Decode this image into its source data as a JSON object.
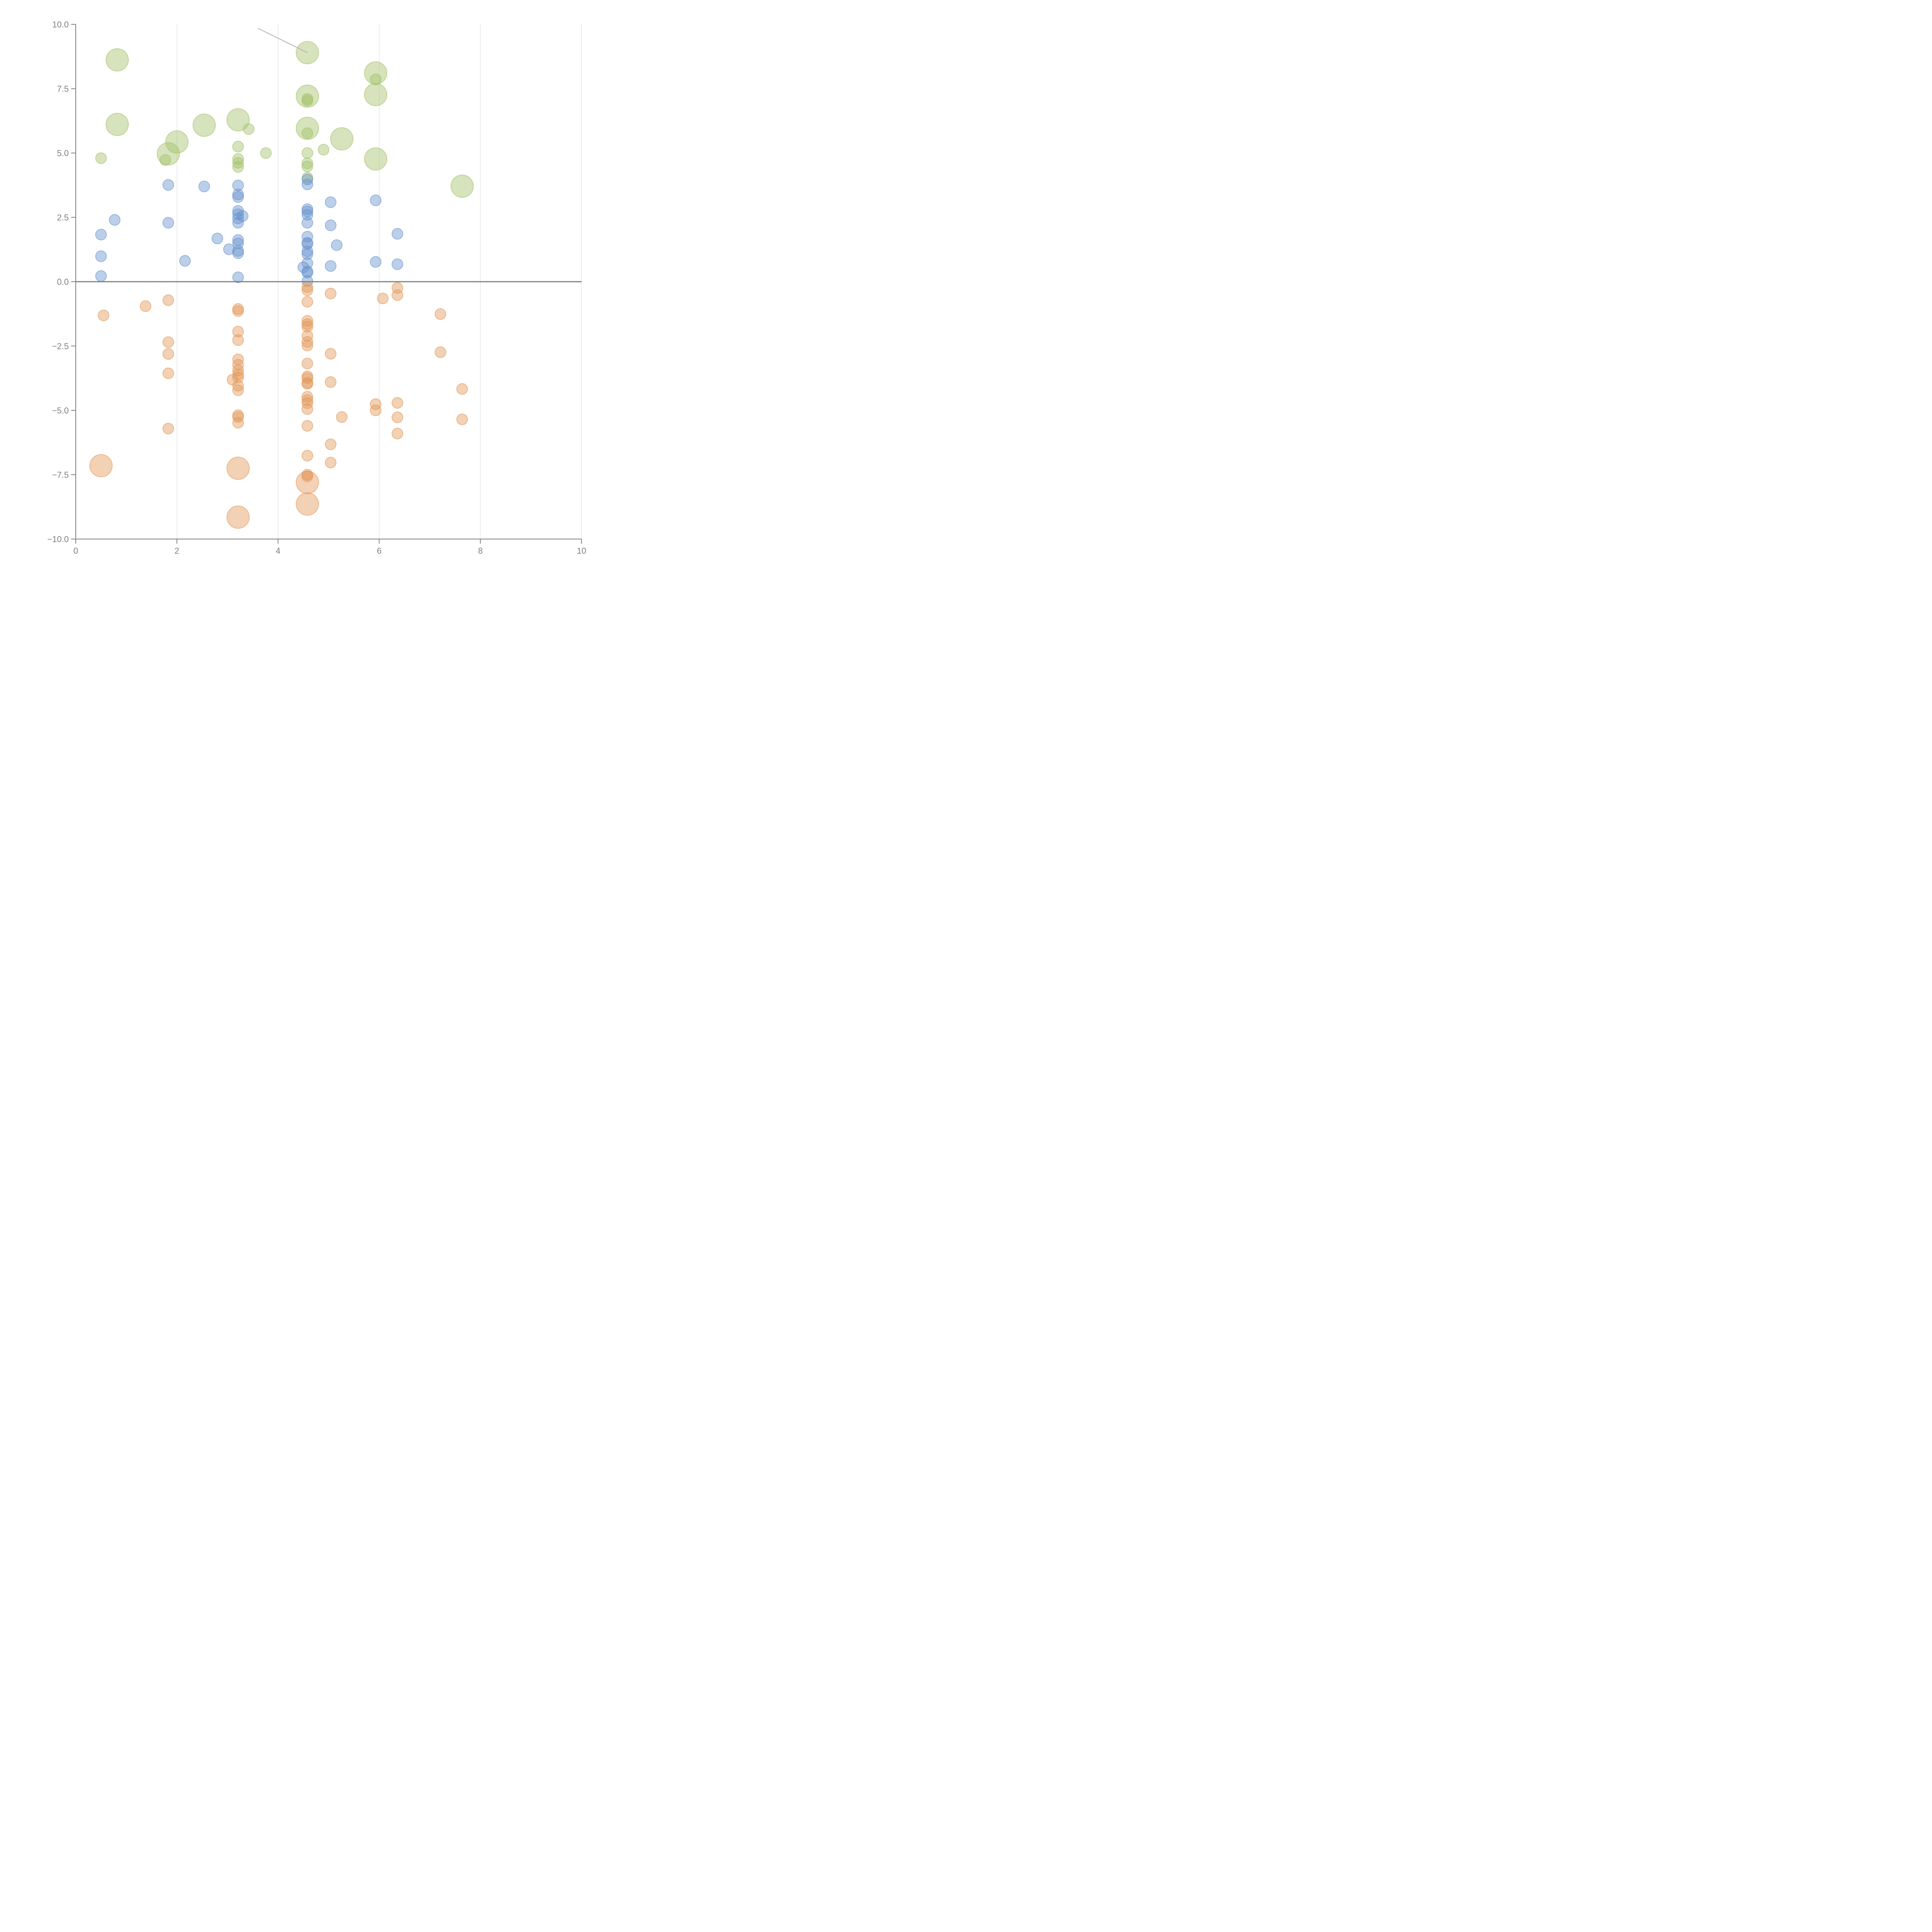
{
  "chart_data": {
    "type": "scatter",
    "title": "",
    "xlabel": "",
    "ylabel": "",
    "xlim": [
      0,
      10
    ],
    "ylim": [
      -10,
      10
    ],
    "x_ticks": [
      "0",
      "2",
      "4",
      "6",
      "8",
      "10"
    ],
    "x_tick_values": [
      0,
      2,
      4,
      6,
      8,
      10
    ],
    "y_ticks": [
      "10.0",
      "7.5",
      "5.0",
      "2.5",
      "0.0",
      "−2.5",
      "−5.0",
      "−7.5",
      "−10.0"
    ],
    "y_tick_values": [
      10,
      7.5,
      5,
      2.5,
      0,
      -2.5,
      -5,
      -7.5,
      -10
    ],
    "grid": "vertical-major",
    "zero_line": true,
    "legend": "none",
    "annotation": {
      "text": "",
      "from": [
        3.6,
        9.85
      ],
      "to": [
        4.58,
        8.9
      ]
    },
    "series": [
      {
        "name": "green",
        "color": "#a5c26a",
        "points": [
          {
            "x": 0.82,
            "y": 8.62,
            "size": 3
          },
          {
            "x": 0.82,
            "y": 6.11,
            "size": 3
          },
          {
            "x": 0.5,
            "y": 4.8,
            "size": 1
          },
          {
            "x": 1.77,
            "y": 4.73,
            "size": 1
          },
          {
            "x": 1.83,
            "y": 4.97,
            "size": 3
          },
          {
            "x": 2.0,
            "y": 5.43,
            "size": 3
          },
          {
            "x": 2.54,
            "y": 6.08,
            "size": 3
          },
          {
            "x": 3.21,
            "y": 6.29,
            "size": 3
          },
          {
            "x": 3.42,
            "y": 5.93,
            "size": 1
          },
          {
            "x": 3.21,
            "y": 5.25,
            "size": 1
          },
          {
            "x": 3.21,
            "y": 4.77,
            "size": 1
          },
          {
            "x": 3.21,
            "y": 4.62,
            "size": 1
          },
          {
            "x": 3.21,
            "y": 4.46,
            "size": 1
          },
          {
            "x": 3.76,
            "y": 5.0,
            "size": 1
          },
          {
            "x": 4.58,
            "y": 8.9,
            "size": 3
          },
          {
            "x": 4.58,
            "y": 7.21,
            "size": 3
          },
          {
            "x": 4.58,
            "y": 7.1,
            "size": 1
          },
          {
            "x": 4.58,
            "y": 7.03,
            "size": 1
          },
          {
            "x": 4.58,
            "y": 5.96,
            "size": 3
          },
          {
            "x": 4.58,
            "y": 5.77,
            "size": 1
          },
          {
            "x": 4.58,
            "y": 5.0,
            "size": 1
          },
          {
            "x": 4.58,
            "y": 4.6,
            "size": 1
          },
          {
            "x": 4.58,
            "y": 4.48,
            "size": 1
          },
          {
            "x": 4.58,
            "y": 4.04,
            "size": 1
          },
          {
            "x": 4.9,
            "y": 5.13,
            "size": 1
          },
          {
            "x": 5.26,
            "y": 5.55,
            "size": 3
          },
          {
            "x": 5.93,
            "y": 8.11,
            "size": 3
          },
          {
            "x": 5.93,
            "y": 7.86,
            "size": 1
          },
          {
            "x": 5.93,
            "y": 7.27,
            "size": 3
          },
          {
            "x": 5.93,
            "y": 4.77,
            "size": 3
          },
          {
            "x": 7.64,
            "y": 3.71,
            "size": 3
          }
        ]
      },
      {
        "name": "blue",
        "color": "#6a95cf",
        "points": [
          {
            "x": 0.5,
            "y": 1.83,
            "size": 1
          },
          {
            "x": 0.5,
            "y": 0.99,
            "size": 1
          },
          {
            "x": 0.5,
            "y": 0.22,
            "size": 1
          },
          {
            "x": 0.77,
            "y": 2.4,
            "size": 1
          },
          {
            "x": 1.83,
            "y": 3.76,
            "size": 1
          },
          {
            "x": 1.83,
            "y": 2.29,
            "size": 1
          },
          {
            "x": 2.16,
            "y": 0.81,
            "size": 1
          },
          {
            "x": 2.54,
            "y": 3.7,
            "size": 1
          },
          {
            "x": 2.8,
            "y": 1.68,
            "size": 1
          },
          {
            "x": 3.03,
            "y": 1.26,
            "size": 1
          },
          {
            "x": 3.21,
            "y": 3.74,
            "size": 1
          },
          {
            "x": 3.21,
            "y": 3.39,
            "size": 1
          },
          {
            "x": 3.21,
            "y": 3.29,
            "size": 1
          },
          {
            "x": 3.21,
            "y": 2.75,
            "size": 1
          },
          {
            "x": 3.21,
            "y": 2.62,
            "size": 1
          },
          {
            "x": 3.21,
            "y": 2.46,
            "size": 1
          },
          {
            "x": 3.21,
            "y": 2.29,
            "size": 1
          },
          {
            "x": 3.3,
            "y": 2.55,
            "size": 1
          },
          {
            "x": 3.21,
            "y": 1.62,
            "size": 1
          },
          {
            "x": 3.21,
            "y": 1.49,
            "size": 1
          },
          {
            "x": 3.21,
            "y": 1.2,
            "size": 1
          },
          {
            "x": 3.21,
            "y": 1.11,
            "size": 1
          },
          {
            "x": 3.21,
            "y": 0.17,
            "size": 1
          },
          {
            "x": 4.58,
            "y": 3.97,
            "size": 1
          },
          {
            "x": 4.58,
            "y": 3.78,
            "size": 1
          },
          {
            "x": 4.58,
            "y": 2.82,
            "size": 1
          },
          {
            "x": 4.58,
            "y": 2.73,
            "size": 1
          },
          {
            "x": 4.58,
            "y": 2.6,
            "size": 1
          },
          {
            "x": 4.58,
            "y": 2.29,
            "size": 1
          },
          {
            "x": 4.58,
            "y": 1.75,
            "size": 1
          },
          {
            "x": 4.58,
            "y": 1.51,
            "size": 1
          },
          {
            "x": 4.58,
            "y": 1.47,
            "size": 1
          },
          {
            "x": 4.58,
            "y": 1.18,
            "size": 1
          },
          {
            "x": 4.58,
            "y": 1.07,
            "size": 1
          },
          {
            "x": 4.58,
            "y": 0.72,
            "size": 1
          },
          {
            "x": 4.5,
            "y": 0.56,
            "size": 1
          },
          {
            "x": 4.58,
            "y": 0.4,
            "size": 1
          },
          {
            "x": 4.58,
            "y": 0.35,
            "size": 1
          },
          {
            "x": 4.58,
            "y": 0.02,
            "size": 1
          },
          {
            "x": 5.04,
            "y": 3.09,
            "size": 1
          },
          {
            "x": 5.04,
            "y": 2.19,
            "size": 1
          },
          {
            "x": 5.04,
            "y": 0.61,
            "size": 1
          },
          {
            "x": 5.16,
            "y": 1.42,
            "size": 1
          },
          {
            "x": 5.93,
            "y": 3.16,
            "size": 1
          },
          {
            "x": 5.93,
            "y": 0.77,
            "size": 1
          },
          {
            "x": 6.36,
            "y": 1.86,
            "size": 1
          },
          {
            "x": 6.36,
            "y": 0.68,
            "size": 1
          }
        ]
      },
      {
        "name": "orange",
        "color": "#e39a5c",
        "points": [
          {
            "x": 0.55,
            "y": -1.31,
            "size": 1
          },
          {
            "x": 0.5,
            "y": -7.15,
            "size": 3
          },
          {
            "x": 1.38,
            "y": -0.95,
            "size": 1
          },
          {
            "x": 1.83,
            "y": -0.72,
            "size": 1
          },
          {
            "x": 1.83,
            "y": -2.35,
            "size": 1
          },
          {
            "x": 1.83,
            "y": -2.81,
            "size": 1
          },
          {
            "x": 1.83,
            "y": -3.56,
            "size": 1
          },
          {
            "x": 1.83,
            "y": -5.71,
            "size": 1
          },
          {
            "x": 3.21,
            "y": -1.06,
            "size": 1
          },
          {
            "x": 3.21,
            "y": -1.14,
            "size": 1
          },
          {
            "x": 3.21,
            "y": -1.94,
            "size": 1
          },
          {
            "x": 3.21,
            "y": -2.27,
            "size": 1
          },
          {
            "x": 3.21,
            "y": -3.02,
            "size": 1
          },
          {
            "x": 3.21,
            "y": -3.23,
            "size": 1
          },
          {
            "x": 3.21,
            "y": -3.44,
            "size": 1
          },
          {
            "x": 3.21,
            "y": -3.6,
            "size": 1
          },
          {
            "x": 3.21,
            "y": -3.72,
            "size": 1
          },
          {
            "x": 3.1,
            "y": -3.81,
            "size": 1
          },
          {
            "x": 3.21,
            "y": -4.04,
            "size": 1
          },
          {
            "x": 3.21,
            "y": -4.22,
            "size": 1
          },
          {
            "x": 3.21,
            "y": -5.19,
            "size": 1
          },
          {
            "x": 3.21,
            "y": -5.26,
            "size": 1
          },
          {
            "x": 3.21,
            "y": -5.48,
            "size": 1
          },
          {
            "x": 3.21,
            "y": -7.25,
            "size": 3
          },
          {
            "x": 3.21,
            "y": -9.15,
            "size": 3
          },
          {
            "x": 4.58,
            "y": -0.21,
            "size": 1
          },
          {
            "x": 4.58,
            "y": -0.33,
            "size": 1
          },
          {
            "x": 4.58,
            "y": -0.78,
            "size": 1
          },
          {
            "x": 4.58,
            "y": -1.52,
            "size": 1
          },
          {
            "x": 4.58,
            "y": -1.65,
            "size": 1
          },
          {
            "x": 4.58,
            "y": -1.75,
            "size": 1
          },
          {
            "x": 4.58,
            "y": -2.1,
            "size": 1
          },
          {
            "x": 4.58,
            "y": -2.34,
            "size": 1
          },
          {
            "x": 4.58,
            "y": -2.48,
            "size": 1
          },
          {
            "x": 4.58,
            "y": -3.18,
            "size": 1
          },
          {
            "x": 4.58,
            "y": -3.68,
            "size": 1
          },
          {
            "x": 4.58,
            "y": -3.75,
            "size": 1
          },
          {
            "x": 4.58,
            "y": -3.93,
            "size": 1
          },
          {
            "x": 4.58,
            "y": -3.97,
            "size": 1
          },
          {
            "x": 4.58,
            "y": -4.47,
            "size": 1
          },
          {
            "x": 4.58,
            "y": -4.6,
            "size": 1
          },
          {
            "x": 4.58,
            "y": -4.72,
            "size": 1
          },
          {
            "x": 4.58,
            "y": -4.95,
            "size": 1
          },
          {
            "x": 4.58,
            "y": -5.6,
            "size": 1
          },
          {
            "x": 4.58,
            "y": -6.76,
            "size": 1
          },
          {
            "x": 4.58,
            "y": -7.5,
            "size": 1
          },
          {
            "x": 4.58,
            "y": -7.56,
            "size": 1
          },
          {
            "x": 4.58,
            "y": -7.8,
            "size": 3
          },
          {
            "x": 4.58,
            "y": -8.64,
            "size": 3
          },
          {
            "x": 5.04,
            "y": -0.46,
            "size": 1
          },
          {
            "x": 5.04,
            "y": -2.8,
            "size": 1
          },
          {
            "x": 5.04,
            "y": -3.9,
            "size": 1
          },
          {
            "x": 5.04,
            "y": -6.32,
            "size": 1
          },
          {
            "x": 5.04,
            "y": -7.03,
            "size": 1
          },
          {
            "x": 5.26,
            "y": -5.26,
            "size": 1
          },
          {
            "x": 5.93,
            "y": -4.76,
            "size": 1
          },
          {
            "x": 5.93,
            "y": -5.0,
            "size": 1
          },
          {
            "x": 6.07,
            "y": -0.65,
            "size": 1
          },
          {
            "x": 6.36,
            "y": -0.24,
            "size": 1
          },
          {
            "x": 6.36,
            "y": -0.52,
            "size": 1
          },
          {
            "x": 6.36,
            "y": -4.71,
            "size": 1
          },
          {
            "x": 6.36,
            "y": -5.27,
            "size": 1
          },
          {
            "x": 6.36,
            "y": -5.9,
            "size": 1
          },
          {
            "x": 7.21,
            "y": -1.26,
            "size": 1
          },
          {
            "x": 7.21,
            "y": -2.74,
            "size": 1
          },
          {
            "x": 7.64,
            "y": -4.17,
            "size": 1
          },
          {
            "x": 7.64,
            "y": -5.35,
            "size": 1
          }
        ]
      }
    ]
  }
}
